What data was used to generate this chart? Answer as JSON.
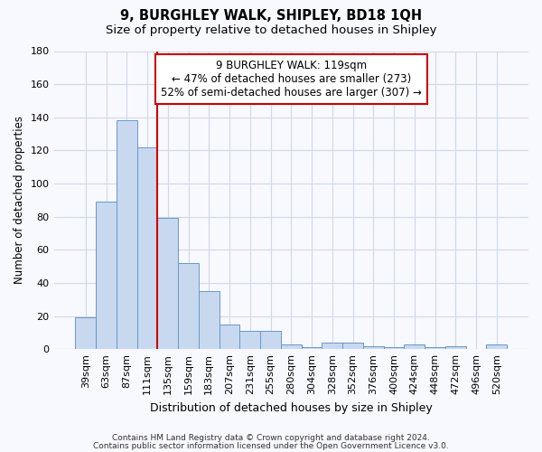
{
  "title": "9, BURGHLEY WALK, SHIPLEY, BD18 1QH",
  "subtitle": "Size of property relative to detached houses in Shipley",
  "xlabel": "Distribution of detached houses by size in Shipley",
  "ylabel": "Number of detached properties",
  "categories": [
    "39sqm",
    "63sqm",
    "87sqm",
    "111sqm",
    "135sqm",
    "159sqm",
    "183sqm",
    "207sqm",
    "231sqm",
    "255sqm",
    "280sqm",
    "304sqm",
    "328sqm",
    "352sqm",
    "376sqm",
    "400sqm",
    "424sqm",
    "448sqm",
    "472sqm",
    "496sqm",
    "520sqm"
  ],
  "values": [
    19,
    89,
    138,
    122,
    79,
    52,
    35,
    15,
    11,
    11,
    3,
    1,
    4,
    4,
    2,
    1,
    3,
    1,
    2,
    0,
    3
  ],
  "bar_color": "#c8d8ef",
  "bar_edge_color": "#6699cc",
  "red_line_x": 3.5,
  "ylim": [
    0,
    180
  ],
  "yticks": [
    0,
    20,
    40,
    60,
    80,
    100,
    120,
    140,
    160,
    180
  ],
  "annotation_text": "9 BURGHLEY WALK: 119sqm\n← 47% of detached houses are smaller (273)\n52% of semi-detached houses are larger (307) →",
  "annotation_box_facecolor": "#ffffff",
  "annotation_box_edgecolor": "#cc0000",
  "red_line_color": "#cc0000",
  "footer1": "Contains HM Land Registry data © Crown copyright and database right 2024.",
  "footer2": "Contains public sector information licensed under the Open Government Licence v3.0.",
  "bg_color": "#f8f8ff",
  "grid_color": "#d0d8e8",
  "title_fontsize": 10.5,
  "subtitle_fontsize": 9.5,
  "tick_fontsize": 8,
  "ylabel_fontsize": 8.5,
  "xlabel_fontsize": 9,
  "annot_fontsize": 8.5,
  "footer_fontsize": 6.5
}
